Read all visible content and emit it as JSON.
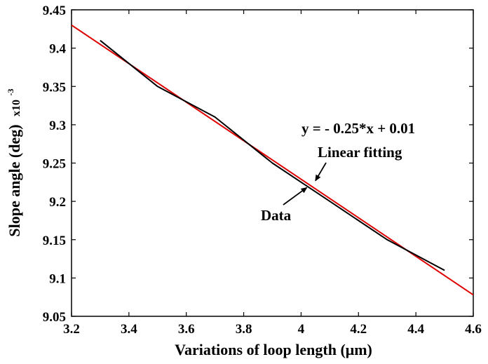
{
  "chart_data": {
    "type": "line",
    "title": "",
    "xlabel": "Variations of loop length (μm)",
    "ylabel": "Slope angle (deg)",
    "y_multiplier": {
      "base": "x10",
      "exponent": "-3"
    },
    "xlim": [
      3.2,
      4.6
    ],
    "ylim": [
      9.05,
      9.45
    ],
    "x_ticks": [
      3.2,
      3.4,
      3.6,
      3.8,
      4.0,
      4.2,
      4.4,
      4.6
    ],
    "x_tick_labels": [
      "3.2",
      "3.4",
      "3.6",
      "3.8",
      "4",
      "4.2",
      "4.4",
      "4.6"
    ],
    "y_ticks": [
      9.05,
      9.1,
      9.15,
      9.2,
      9.25,
      9.3,
      9.35,
      9.4,
      9.45
    ],
    "y_tick_labels": [
      "9.05",
      "9.1",
      "9.15",
      "9.2",
      "9.25",
      "9.3",
      "9.35",
      "9.4",
      "9.45"
    ],
    "grid": false,
    "series": [
      {
        "name": "Data",
        "color": "#000000",
        "x": [
          3.3,
          3.5,
          3.7,
          3.9,
          4.1,
          4.3,
          4.5
        ],
        "y": [
          9.41,
          9.35,
          9.31,
          9.25,
          9.2,
          9.15,
          9.11
        ]
      },
      {
        "name": "Linear fitting",
        "color": "#e00000",
        "x": [
          3.2,
          4.6
        ],
        "y": [
          9.43,
          9.078
        ]
      }
    ],
    "annotations": [
      {
        "text": "y = - 0.25*x + 0.01"
      },
      {
        "text": "Linear fitting",
        "arrow_to": {
          "x": 4.05,
          "y": 9.227
        }
      },
      {
        "text": "Data",
        "arrow_to": {
          "x": 4.02,
          "y": 9.218
        }
      }
    ]
  }
}
